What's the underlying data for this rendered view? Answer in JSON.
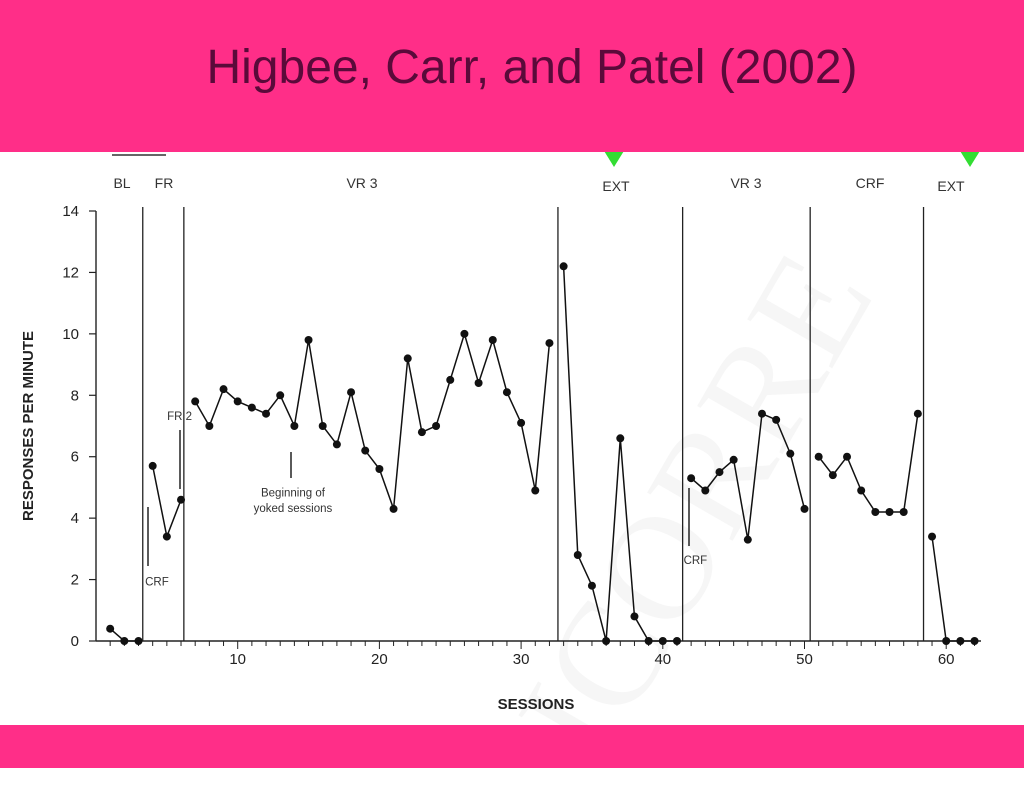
{
  "slide": {
    "title": "Higbee, Carr, and Patel (2002)",
    "watermark": "ICORRE",
    "colors": {
      "band": "#ff2e88",
      "title": "#5a0a3a",
      "arrow": "#33dd33"
    }
  },
  "chart_data": {
    "type": "line",
    "xlabel": "SESSIONS",
    "ylabel": "RESPONSES PER MINUTE",
    "xlim": [
      0,
      62
    ],
    "ylim": [
      0,
      14
    ],
    "xticks": [
      10,
      20,
      30,
      40,
      50,
      60
    ],
    "yticks": [
      0,
      2,
      4,
      6,
      8,
      10,
      12,
      14
    ],
    "phases": [
      {
        "label": "BL",
        "start": 0,
        "end": 3.3
      },
      {
        "label": "FR",
        "start": 3.3,
        "end": 6.2
      },
      {
        "label": "VR 3",
        "start": 6.2,
        "end": 32.6
      },
      {
        "label": "EXT",
        "start": 32.6,
        "end": 41.4
      },
      {
        "label": "VR 3",
        "start": 41.4,
        "end": 50.4
      },
      {
        "label": "CRF",
        "start": 50.4,
        "end": 58.4
      },
      {
        "label": "EXT",
        "start": 58.4,
        "end": 62
      }
    ],
    "phase_lines": [
      3.3,
      6.2,
      32.6,
      41.4,
      50.4,
      58.4
    ],
    "highlighted_phases": [
      "EXT",
      "EXT"
    ],
    "annotations": [
      {
        "text": "FR 2",
        "x": 5.9,
        "y": 7.2
      },
      {
        "text": "CRF",
        "x": 4.3,
        "y": 1.8
      },
      {
        "text": "Beginning of",
        "x": 13.9,
        "y": 4.7
      },
      {
        "text": "yoked sessions",
        "x": 13.9,
        "y": 4.2
      },
      {
        "text": "CRF",
        "x": 42.3,
        "y": 2.5
      }
    ],
    "segments": [
      {
        "x": [
          1,
          2,
          3
        ],
        "y": [
          0.4,
          0.0,
          0.0
        ]
      },
      {
        "x": [
          4,
          5,
          6
        ],
        "y": [
          5.7,
          3.4,
          4.6
        ]
      },
      {
        "x": [
          7,
          8,
          9,
          10,
          11,
          12,
          13,
          14,
          15,
          16,
          17,
          18,
          19,
          20,
          21,
          22,
          23,
          24,
          25,
          26,
          27,
          28,
          29,
          30,
          31,
          32
        ],
        "y": [
          7.8,
          7.0,
          8.2,
          7.8,
          7.6,
          7.4,
          8.0,
          7.0,
          9.8,
          7.0,
          6.4,
          8.1,
          6.2,
          5.6,
          4.3,
          9.2,
          6.8,
          7.0,
          8.5,
          10.0,
          8.4,
          9.8,
          8.1,
          7.1,
          4.9,
          9.7
        ]
      },
      {
        "x": [
          33,
          34,
          35,
          36,
          37,
          38,
          39,
          40,
          41
        ],
        "y": [
          12.2,
          2.8,
          1.8,
          0.0,
          6.6,
          0.8,
          0.0,
          0.0,
          0.0
        ]
      },
      {
        "x": [
          42,
          43,
          44,
          45,
          46,
          47,
          48,
          49,
          50
        ],
        "y": [
          5.3,
          4.9,
          5.5,
          5.9,
          3.3,
          7.4,
          7.2,
          6.1,
          4.3
        ]
      },
      {
        "x": [
          51,
          52,
          53,
          54,
          55,
          56,
          57,
          58
        ],
        "y": [
          6.0,
          5.4,
          6.0,
          4.9,
          4.2,
          4.2,
          4.2,
          7.4
        ]
      },
      {
        "x": [
          59,
          60,
          61,
          62
        ],
        "y": [
          3.4,
          0.0,
          0.0,
          0.0
        ]
      }
    ]
  }
}
